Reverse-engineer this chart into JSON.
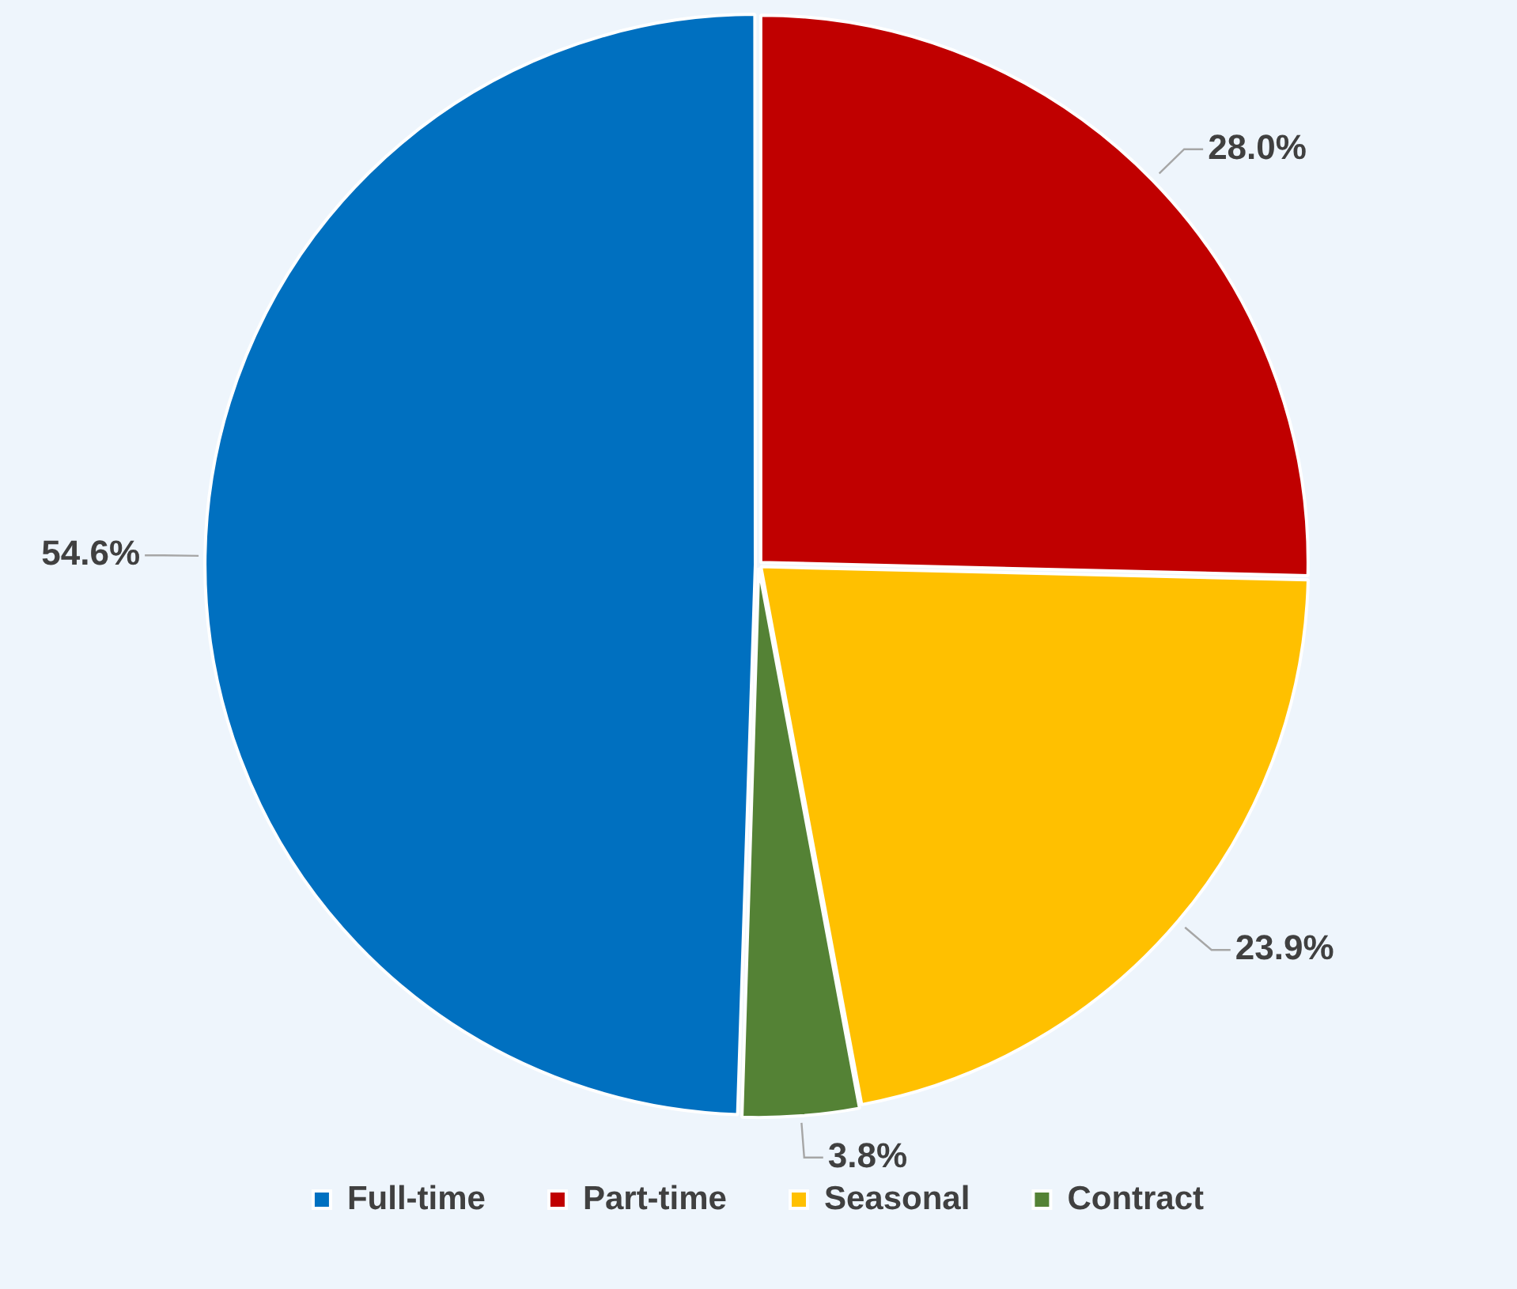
{
  "chart_data": {
    "type": "pie",
    "categories": [
      "Full-time",
      "Part-time",
      "Seasonal",
      "Contract"
    ],
    "values": [
      54.6,
      28.0,
      23.9,
      3.8
    ],
    "colors": [
      "#0070c0",
      "#c00000",
      "#ffc000",
      "#548235"
    ],
    "value_labels": [
      "54.6%",
      "28.0%",
      "23.9%",
      "3.8%"
    ],
    "legend": "bottom"
  }
}
